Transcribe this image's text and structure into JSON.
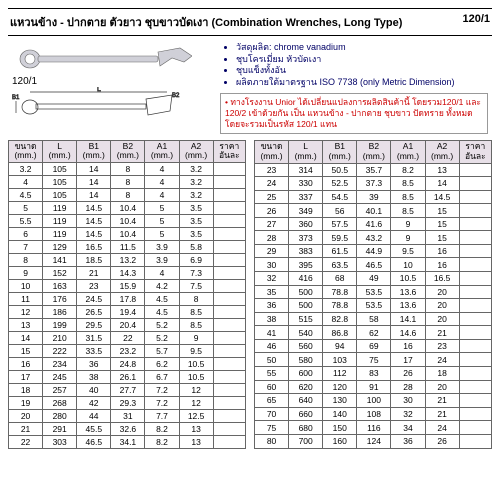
{
  "header": {
    "title_th": "แหวนข้าง - ปากตาย ตัวยาว ชุบขาวบัดเงา (Combination Wrenches, Long Type)",
    "code": "120/1"
  },
  "img_code": "120/1",
  "info": {
    "bullets": [
      "วัสดุผลิต: chrome vanadium",
      "ชุบโครเมี่ยม หัวบัดเงา",
      "ชุบแข็งทั้งอัน",
      "ผลิตภายใต้มาตรฐาน ISO 7738 (only Metric Dimension)"
    ],
    "note_a": "ทางโรงงาน Unior ได้เปลี่ยนแปลงการผลิตสินค้านี้ โดยรวม120/1 และ 120/2 เข้าด้วยกัน เป็น ",
    "note_b": "แหวนข้าง - ปากตาย ชุบขาว ปัดทราย",
    "note_c": " ทั้งหมด โดยจะรวมเป็นรหัส 120/1 แทน"
  },
  "cols": [
    "ขนาด",
    "L",
    "B1",
    "B2",
    "A1",
    "A2",
    "ราคา"
  ],
  "unit": "(mm.)",
  "last": "อันละ",
  "t1": [
    [
      "3.2",
      "105",
      "14",
      "8",
      "4",
      "3.2",
      ""
    ],
    [
      "4",
      "105",
      "14",
      "8",
      "4",
      "3.2",
      ""
    ],
    [
      "4.5",
      "105",
      "14",
      "8",
      "4",
      "3.2",
      ""
    ],
    [
      "5",
      "119",
      "14.5",
      "10.4",
      "5",
      "3.5",
      ""
    ],
    [
      "5.5",
      "119",
      "14.5",
      "10.4",
      "5",
      "3.5",
      ""
    ],
    [
      "6",
      "119",
      "14.5",
      "10.4",
      "5",
      "3.5",
      ""
    ],
    [
      "7",
      "129",
      "16.5",
      "11.5",
      "3.9",
      "5.8",
      ""
    ],
    [
      "8",
      "141",
      "18.5",
      "13.2",
      "3.9",
      "6.9",
      ""
    ],
    [
      "9",
      "152",
      "21",
      "14.3",
      "4",
      "7.3",
      ""
    ],
    [
      "10",
      "163",
      "23",
      "15.9",
      "4.2",
      "7.5",
      ""
    ],
    [
      "11",
      "176",
      "24.5",
      "17.8",
      "4.5",
      "8",
      ""
    ],
    [
      "12",
      "186",
      "26.5",
      "19.4",
      "4.5",
      "8.5",
      ""
    ],
    [
      "13",
      "199",
      "29.5",
      "20.4",
      "5.2",
      "8.5",
      ""
    ],
    [
      "14",
      "210",
      "31.5",
      "22",
      "5.2",
      "9",
      ""
    ],
    [
      "15",
      "222",
      "33.5",
      "23.2",
      "5.7",
      "9.5",
      ""
    ],
    [
      "16",
      "234",
      "36",
      "24.8",
      "6.2",
      "10.5",
      ""
    ],
    [
      "17",
      "245",
      "38",
      "26.1",
      "6.7",
      "10.5",
      ""
    ],
    [
      "18",
      "257",
      "40",
      "27.7",
      "7.2",
      "12",
      ""
    ],
    [
      "19",
      "268",
      "42",
      "29.3",
      "7.2",
      "12",
      ""
    ],
    [
      "20",
      "280",
      "44",
      "31",
      "7.7",
      "12.5",
      ""
    ],
    [
      "21",
      "291",
      "45.5",
      "32.6",
      "8.2",
      "13",
      ""
    ],
    [
      "22",
      "303",
      "46.5",
      "34.1",
      "8.2",
      "13",
      ""
    ]
  ],
  "t2": [
    [
      "23",
      "314",
      "50.5",
      "35.7",
      "8.2",
      "13",
      ""
    ],
    [
      "24",
      "330",
      "52.5",
      "37.3",
      "8.5",
      "14",
      ""
    ],
    [
      "25",
      "337",
      "54.5",
      "39",
      "8.5",
      "14.5",
      ""
    ],
    [
      "26",
      "349",
      "56",
      "40.1",
      "8.5",
      "15",
      ""
    ],
    [
      "27",
      "360",
      "57.5",
      "41.6",
      "9",
      "15",
      ""
    ],
    [
      "28",
      "373",
      "59.5",
      "43.2",
      "9",
      "15",
      ""
    ],
    [
      "29",
      "383",
      "61.5",
      "44.9",
      "9.5",
      "16",
      ""
    ],
    [
      "30",
      "395",
      "63.5",
      "46.5",
      "10",
      "16",
      ""
    ],
    [
      "32",
      "416",
      "68",
      "49",
      "10.5",
      "16.5",
      ""
    ],
    [
      "35",
      "500",
      "78.8",
      "53.5",
      "13.6",
      "20",
      ""
    ],
    [
      "36",
      "500",
      "78.8",
      "53.5",
      "13.6",
      "20",
      ""
    ],
    [
      "38",
      "515",
      "82.8",
      "58",
      "14.1",
      "20",
      ""
    ],
    [
      "41",
      "540",
      "86.8",
      "62",
      "14.6",
      "21",
      ""
    ],
    [
      "46",
      "560",
      "94",
      "69",
      "16",
      "23",
      ""
    ],
    [
      "50",
      "580",
      "103",
      "75",
      "17",
      "24",
      ""
    ],
    [
      "55",
      "600",
      "112",
      "83",
      "26",
      "18",
      ""
    ],
    [
      "60",
      "620",
      "120",
      "91",
      "28",
      "20",
      ""
    ],
    [
      "65",
      "640",
      "130",
      "100",
      "30",
      "21",
      ""
    ],
    [
      "70",
      "660",
      "140",
      "108",
      "32",
      "21",
      ""
    ],
    [
      "75",
      "680",
      "150",
      "116",
      "34",
      "24",
      ""
    ],
    [
      "80",
      "700",
      "160",
      "124",
      "36",
      "26",
      ""
    ]
  ]
}
